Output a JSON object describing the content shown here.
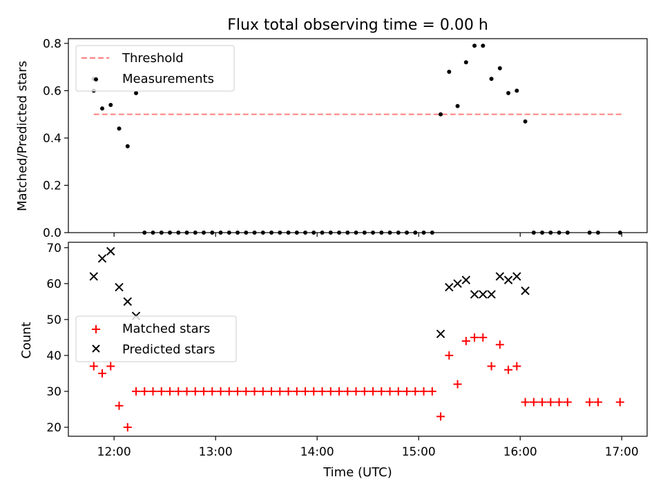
{
  "chart_data": [
    {
      "type": "scatter",
      "title": "Flux total observing time = 0.00 h",
      "xlabel": "",
      "ylabel": "Matched/Predicted stars",
      "ylim": [
        0,
        0.82
      ],
      "yticks": [
        "0.0",
        "0.2",
        "0.4",
        "0.6",
        "0.8"
      ],
      "ytick_values": [
        0,
        0.2,
        0.4,
        0.6,
        0.8
      ],
      "threshold": {
        "name": "Threshold",
        "value": 0.5,
        "x_range": [
          "11:48",
          "17:00"
        ],
        "color": "#ff7f7f"
      },
      "legend": {
        "position": "upper-left",
        "entries": [
          "Threshold",
          "Measurements"
        ]
      },
      "series": [
        {
          "name": "Measurements",
          "color": "#000000",
          "marker": "dot",
          "x": [
            "11:48",
            "11:53",
            "11:58",
            "12:03",
            "12:08",
            "12:13",
            "12:18",
            "12:23",
            "12:28",
            "12:33",
            "12:38",
            "12:43",
            "12:48",
            "12:53",
            "12:58",
            "13:03",
            "13:08",
            "13:13",
            "13:18",
            "13:23",
            "13:28",
            "13:33",
            "13:38",
            "13:43",
            "13:48",
            "13:53",
            "13:58",
            "14:03",
            "14:08",
            "14:13",
            "14:18",
            "14:23",
            "14:28",
            "14:33",
            "14:38",
            "14:43",
            "14:48",
            "14:53",
            "14:58",
            "15:03",
            "15:08",
            "15:13",
            "15:18",
            "15:23",
            "15:28",
            "15:33",
            "15:38",
            "15:43",
            "15:48",
            "15:53",
            "15:58",
            "16:03",
            "16:08",
            "16:13",
            "16:18",
            "16:23",
            "16:28",
            "16:41",
            "16:46",
            "16:59"
          ],
          "y": [
            0.6,
            0.525,
            0.54,
            0.44,
            0.365,
            0.59,
            0,
            0,
            0,
            0,
            0,
            0,
            0,
            0,
            0,
            0,
            0,
            0,
            0,
            0,
            0,
            0,
            0,
            0,
            0,
            0,
            0,
            0,
            0,
            0,
            0,
            0,
            0,
            0,
            0,
            0,
            0,
            0,
            0,
            0,
            0,
            0.5,
            0.68,
            0.535,
            0.72,
            0.79,
            0.79,
            0.65,
            0.695,
            0.59,
            0.6,
            0.47,
            0,
            0,
            0,
            0,
            0,
            0,
            0,
            0
          ]
        },
        {
          "name": "",
          "color": "#000000",
          "marker": "dot",
          "x": [
            "11:48"
          ],
          "y": [
            0.65
          ]
        }
      ],
      "xticks": [
        "12:00",
        "13:00",
        "14:00",
        "15:00",
        "16:00",
        "17:00"
      ],
      "xlim": [
        "11:33",
        "17:15"
      ]
    },
    {
      "type": "scatter",
      "title": "",
      "xlabel": "Time (UTC)",
      "ylabel": "Count",
      "ylim": [
        17.5,
        71.5
      ],
      "yticks": [
        "20",
        "30",
        "40",
        "50",
        "60",
        "70"
      ],
      "ytick_values": [
        20,
        30,
        40,
        50,
        60,
        70
      ],
      "xticks": [
        "12:00",
        "13:00",
        "14:00",
        "15:00",
        "16:00",
        "17:00"
      ],
      "xlim": [
        "11:33",
        "17:15"
      ],
      "legend": {
        "position": "center-left",
        "entries": [
          "Matched stars",
          "Predicted stars"
        ]
      },
      "series": [
        {
          "name": "Matched stars",
          "color": "#ff0000",
          "marker": "plus",
          "x": [
            "11:48",
            "11:53",
            "11:58",
            "12:03",
            "12:08",
            "12:13",
            "12:18",
            "12:23",
            "12:28",
            "12:33",
            "12:38",
            "12:43",
            "12:48",
            "12:53",
            "12:58",
            "13:03",
            "13:08",
            "13:13",
            "13:18",
            "13:23",
            "13:28",
            "13:33",
            "13:38",
            "13:43",
            "13:48",
            "13:53",
            "13:58",
            "14:03",
            "14:08",
            "14:13",
            "14:18",
            "14:23",
            "14:28",
            "14:33",
            "14:38",
            "14:43",
            "14:48",
            "14:53",
            "14:58",
            "15:03",
            "15:08",
            "15:13",
            "15:18",
            "15:23",
            "15:28",
            "15:33",
            "15:38",
            "15:43",
            "15:48",
            "15:53",
            "15:58",
            "16:03",
            "16:08",
            "16:13",
            "16:18",
            "16:23",
            "16:28",
            "16:41",
            "16:46",
            "16:59"
          ],
          "y": [
            37,
            35,
            37,
            26,
            20,
            30,
            30,
            30,
            30,
            30,
            30,
            30,
            30,
            30,
            30,
            30,
            30,
            30,
            30,
            30,
            30,
            30,
            30,
            30,
            30,
            30,
            30,
            30,
            30,
            30,
            30,
            30,
            30,
            30,
            30,
            30,
            30,
            30,
            30,
            30,
            30,
            23,
            40,
            32,
            44,
            45,
            45,
            37,
            43,
            36,
            37,
            27,
            27,
            27,
            27,
            27,
            27,
            27,
            27,
            27
          ]
        },
        {
          "name": "Predicted stars",
          "color": "#000000",
          "marker": "x",
          "x": [
            "11:48",
            "11:53",
            "11:58",
            "12:03",
            "12:08",
            "12:13",
            "15:13",
            "15:18",
            "15:23",
            "15:28",
            "15:33",
            "15:38",
            "15:43",
            "15:48",
            "15:53",
            "15:58",
            "16:03"
          ],
          "y": [
            62,
            67,
            69,
            59,
            55,
            51,
            46,
            59,
            60,
            61,
            57,
            57,
            57,
            62,
            61,
            62,
            58
          ]
        }
      ]
    }
  ]
}
